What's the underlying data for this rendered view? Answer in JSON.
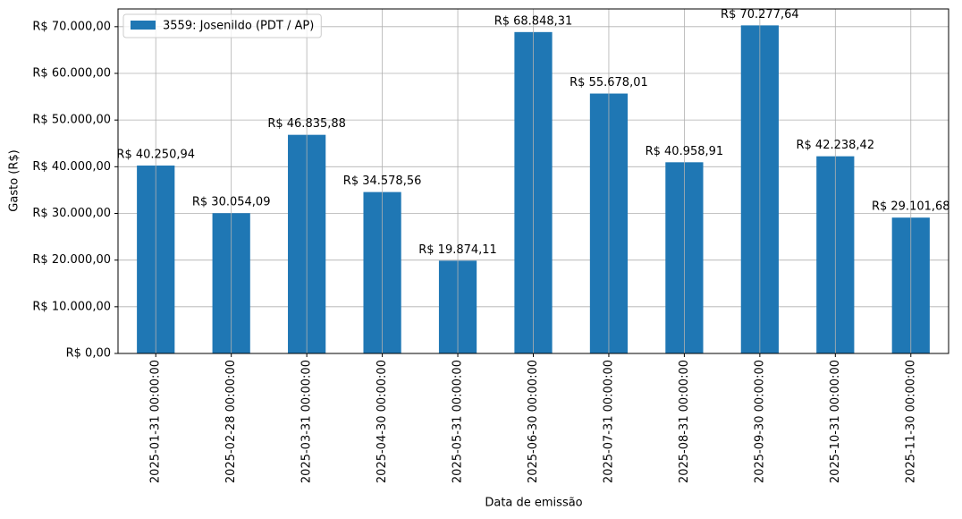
{
  "chart_data": {
    "type": "bar",
    "xlabel": "Data de emissão",
    "ylabel": "Gasto (R$)",
    "categories": [
      "2025-01-31 00:00:00",
      "2025-02-28 00:00:00",
      "2025-03-31 00:00:00",
      "2025-04-30 00:00:00",
      "2025-05-31 00:00:00",
      "2025-06-30 00:00:00",
      "2025-07-31 00:00:00",
      "2025-08-31 00:00:00",
      "2025-09-30 00:00:00",
      "2025-10-31 00:00:00",
      "2025-11-30 00:00:00"
    ],
    "series": [
      {
        "name": "3559: Josenildo (PDT / AP)",
        "color": "#1f77b4",
        "values": [
          40250.94,
          30054.09,
          46835.88,
          34578.56,
          19874.11,
          68848.31,
          55678.01,
          40958.91,
          70277.64,
          42238.42,
          29101.68
        ],
        "value_labels": [
          "R$ 40.250,94",
          "R$ 30.054,09",
          "R$ 46.835,88",
          "R$ 34.578,56",
          "R$ 19.874,11",
          "R$ 68.848,31",
          "R$ 55.678,01",
          "R$ 40.958,91",
          "R$ 70.277,64",
          "R$ 42.238,42",
          "R$ 29.101,68"
        ]
      }
    ],
    "ylim": [
      0,
      73800
    ],
    "yticks": [
      {
        "value": 0,
        "label": "R$ 0,00"
      },
      {
        "value": 10000,
        "label": "R$ 10.000,00"
      },
      {
        "value": 20000,
        "label": "R$ 20.000,00"
      },
      {
        "value": 30000,
        "label": "R$ 30.000,00"
      },
      {
        "value": 40000,
        "label": "R$ 40.000,00"
      },
      {
        "value": 50000,
        "label": "R$ 50.000,00"
      },
      {
        "value": 60000,
        "label": "R$ 60.000,00"
      },
      {
        "value": 70000,
        "label": "R$ 70.000,00"
      }
    ],
    "grid": true,
    "legend": "upper left"
  }
}
